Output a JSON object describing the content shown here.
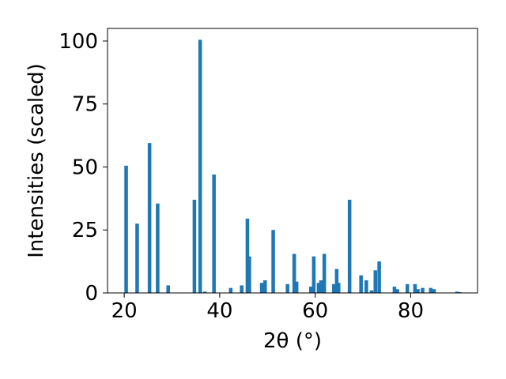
{
  "colors": {
    "bar": "#1f77b4",
    "axis": "#000000",
    "background": "#ffffff"
  },
  "chart_data": {
    "type": "bar",
    "title": "",
    "xlabel": "2θ (°)",
    "ylabel": "Intensities (scaled)",
    "xlim": [
      16.5,
      94
    ],
    "ylim": [
      0,
      105
    ],
    "xticks": [
      20,
      40,
      60,
      80
    ],
    "yticks": [
      0,
      25,
      50,
      75,
      100
    ],
    "bar_width": 0.75,
    "grid": false,
    "legend": "none",
    "x": [
      20.4,
      22.7,
      25.3,
      27.0,
      29.2,
      34.7,
      35.9,
      36.9,
      38.8,
      42.3,
      44.6,
      45.8,
      46.2,
      48.8,
      49.5,
      51.2,
      54.2,
      55.6,
      56.1,
      59.1,
      59.7,
      60.7,
      61.2,
      61.9,
      63.9,
      64.5,
      64.9,
      67.2,
      69.6,
      70.7,
      71.8,
      72.6,
      73.4,
      76.6,
      77.2,
      79.3,
      80.9,
      81.5,
      82.5,
      84.2,
      84.9,
      89.7,
      90.3
    ],
    "values": [
      50.5,
      27.5,
      59.5,
      35.5,
      3,
      37,
      100.5,
      0.5,
      47,
      2,
      3,
      29.5,
      14.5,
      4,
      5,
      25,
      3.5,
      15.5,
      4.5,
      2.5,
      14.5,
      4,
      5,
      15.5,
      3.5,
      9.5,
      4,
      37,
      7,
      5,
      1,
      9,
      12.5,
      2.5,
      1.5,
      3.5,
      3.5,
      1.5,
      2,
      2,
      1.5,
      0.5,
      0.3
    ]
  }
}
